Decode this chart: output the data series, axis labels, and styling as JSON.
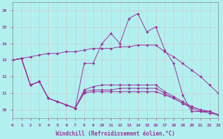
{
  "bg_color": "#b2f0f0",
  "grid_color": "#cccccc",
  "line_color": "#993399",
  "xlabel": "Windchill (Refroidissement éolien,°C)",
  "xlim": [
    0,
    23
  ],
  "ylim": [
    9.5,
    16.5
  ],
  "yticks": [
    10,
    11,
    12,
    13,
    14,
    15,
    16
  ],
  "xticks": [
    0,
    1,
    2,
    3,
    4,
    5,
    6,
    7,
    8,
    9,
    10,
    11,
    12,
    13,
    14,
    15,
    16,
    17,
    18,
    19,
    20,
    21,
    22,
    23
  ],
  "series": [
    {
      "x": [
        0,
        1,
        2,
        3,
        4,
        5,
        6,
        7,
        8,
        9,
        10,
        11,
        12,
        13,
        14,
        15,
        16,
        17,
        18,
        19,
        20,
        21,
        22,
        23
      ],
      "y": [
        13.0,
        13.1,
        13.2,
        13.3,
        13.4,
        13.4,
        13.5,
        13.5,
        13.6,
        13.7,
        13.7,
        13.7,
        13.8,
        13.8,
        13.9,
        13.9,
        13.9,
        13.5,
        13.2,
        12.8,
        12.4,
        12.0,
        11.5,
        11.0
      ]
    },
    {
      "x": [
        0,
        1,
        2,
        3,
        4,
        5,
        6,
        7,
        8,
        9,
        10,
        11,
        12,
        13,
        14,
        15,
        16,
        17,
        18,
        19,
        20,
        21,
        22,
        23
      ],
      "y": [
        13.0,
        13.1,
        11.5,
        11.7,
        10.7,
        10.5,
        10.3,
        10.1,
        12.8,
        12.8,
        14.0,
        14.6,
        14.0,
        15.5,
        15.8,
        14.7,
        15.0,
        13.6,
        12.8,
        10.9,
        9.9,
        9.9,
        9.9,
        9.7
      ]
    },
    {
      "x": [
        0,
        1,
        2,
        3,
        4,
        5,
        6,
        7,
        8,
        9,
        10,
        11,
        12,
        13,
        14,
        15,
        16,
        17,
        18,
        19,
        20,
        21,
        22,
        23
      ],
      "y": [
        13.0,
        13.1,
        11.5,
        11.7,
        10.7,
        10.5,
        10.3,
        10.1,
        11.0,
        11.1,
        11.1,
        11.1,
        11.1,
        11.1,
        11.1,
        11.1,
        11.1,
        10.9,
        10.7,
        10.4,
        10.2,
        10.0,
        9.9,
        9.7
      ]
    },
    {
      "x": [
        0,
        1,
        2,
        3,
        4,
        5,
        6,
        7,
        8,
        9,
        10,
        11,
        12,
        13,
        14,
        15,
        16,
        17,
        18,
        19,
        20,
        21,
        22,
        23
      ],
      "y": [
        13.0,
        13.1,
        11.5,
        11.7,
        10.7,
        10.5,
        10.3,
        10.1,
        11.1,
        11.2,
        11.2,
        11.2,
        11.3,
        11.3,
        11.3,
        11.3,
        11.3,
        11.0,
        10.7,
        10.4,
        10.1,
        9.9,
        9.8,
        9.7
      ]
    },
    {
      "x": [
        0,
        1,
        2,
        3,
        4,
        5,
        6,
        7,
        8,
        9,
        10,
        11,
        12,
        13,
        14,
        15,
        16,
        17,
        18,
        19,
        20,
        21,
        22,
        23
      ],
      "y": [
        13.0,
        13.1,
        11.5,
        11.7,
        10.7,
        10.5,
        10.3,
        10.1,
        11.2,
        11.4,
        11.5,
        11.5,
        11.5,
        11.5,
        11.5,
        11.5,
        11.5,
        11.1,
        10.8,
        10.5,
        10.2,
        10.0,
        9.9,
        9.7
      ]
    }
  ]
}
